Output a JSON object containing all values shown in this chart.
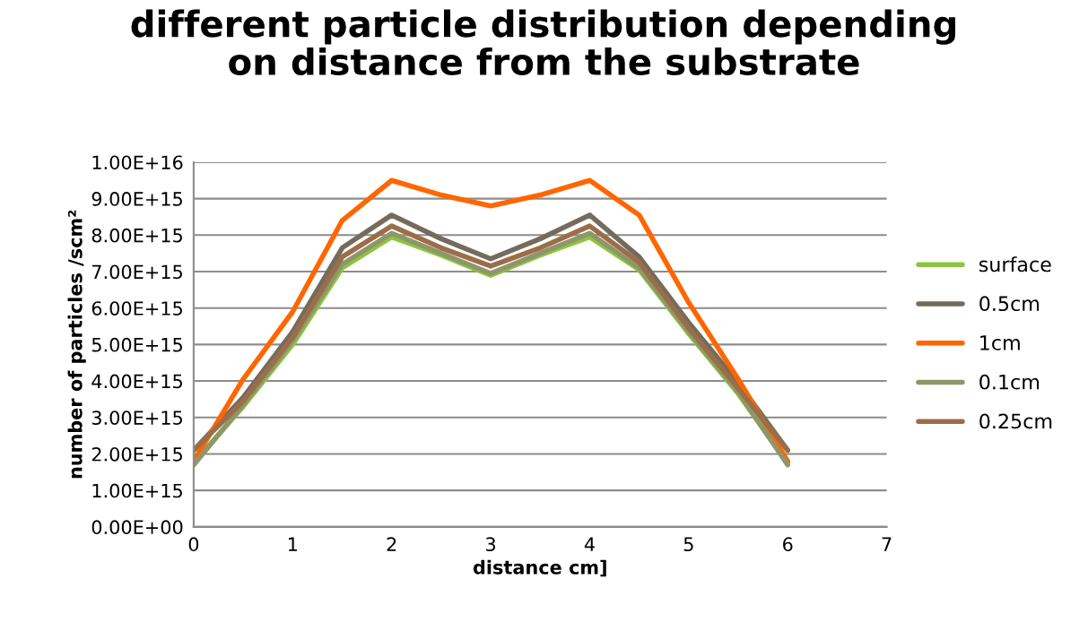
{
  "chart_data": {
    "type": "line",
    "title": "different particle distribution depending\non distance from the substrate",
    "xlabel": "distance cm]",
    "ylabel": "number of particles /scm²",
    "x": [
      0,
      0.5,
      1,
      1.5,
      2,
      2.5,
      3,
      3.5,
      4,
      4.5,
      5,
      5.5,
      6
    ],
    "series": [
      {
        "name": "surface",
        "color": "#8cc63f",
        "values": [
          1750000000000000.0,
          3300000000000000.0,
          5000000000000000.0,
          7100000000000000.0,
          7950000000000000.0,
          7450000000000000.0,
          6900000000000000.0,
          7450000000000000.0,
          7950000000000000.0,
          7050000000000000.0,
          5300000000000000.0,
          3650000000000000.0,
          1750000000000000.0
        ]
      },
      {
        "name": "0.5cm",
        "color": "#756b5c",
        "values": [
          2100000000000000.0,
          3550000000000000.0,
          5350000000000000.0,
          7650000000000000.0,
          8550000000000000.0,
          7900000000000000.0,
          7350000000000000.0,
          7900000000000000.0,
          8550000000000000.0,
          7400000000000000.0,
          5600000000000000.0,
          3950000000000000.0,
          2100000000000000.0
        ]
      },
      {
        "name": "1cm",
        "color": "#ff6600",
        "values": [
          1800000000000000.0,
          4050000000000000.0,
          5900000000000000.0,
          8400000000000000.0,
          9500000000000000.0,
          9100000000000000.0,
          8800000000000000.0,
          9100000000000000.0,
          9500000000000000.0,
          8550000000000000.0,
          6150000000000000.0,
          4050000000000000.0,
          1800000000000000.0
        ]
      },
      {
        "name": "0.1cm",
        "color": "#8f966a",
        "values": [
          1700000000000000.0,
          3350000000000000.0,
          5100000000000000.0,
          7200000000000000.0,
          8050000000000000.0,
          7500000000000000.0,
          6950000000000000.0,
          7500000000000000.0,
          8050000000000000.0,
          7100000000000000.0,
          5350000000000000.0,
          3700000000000000.0,
          1700000000000000.0
        ]
      },
      {
        "name": "0.25cm",
        "color": "#9a6e48",
        "values": [
          2100000000000000.0,
          3450000000000000.0,
          5200000000000000.0,
          7400000000000000.0,
          8250000000000000.0,
          7650000000000000.0,
          7150000000000000.0,
          7650000000000000.0,
          8250000000000000.0,
          7250000000000000.0,
          5450000000000000.0,
          3800000000000000.0,
          2100000000000000.0
        ]
      }
    ],
    "xlim": [
      0,
      7
    ],
    "xticks": [
      0,
      1,
      2,
      3,
      4,
      5,
      6,
      7
    ],
    "ylim": [
      0,
      1e+16
    ],
    "yticks": [
      {
        "value": 0,
        "label": "0.00E+00"
      },
      {
        "value": 1000000000000000.0,
        "label": "1.00E+15"
      },
      {
        "value": 2000000000000000.0,
        "label": "2.00E+15"
      },
      {
        "value": 3000000000000000.0,
        "label": "3.00E+15"
      },
      {
        "value": 4000000000000000.0,
        "label": "4.00E+15"
      },
      {
        "value": 5000000000000000.0,
        "label": "5.00E+15"
      },
      {
        "value": 6000000000000000.0,
        "label": "6.00E+15"
      },
      {
        "value": 7000000000000000.0,
        "label": "7.00E+15"
      },
      {
        "value": 8000000000000000.0,
        "label": "8.00E+15"
      },
      {
        "value": 9000000000000000.0,
        "label": "9.00E+15"
      },
      {
        "value": 1e+16,
        "label": "1.00E+16"
      }
    ],
    "grid": "y",
    "legend": "right",
    "marker": "none",
    "line_style": "solid"
  }
}
